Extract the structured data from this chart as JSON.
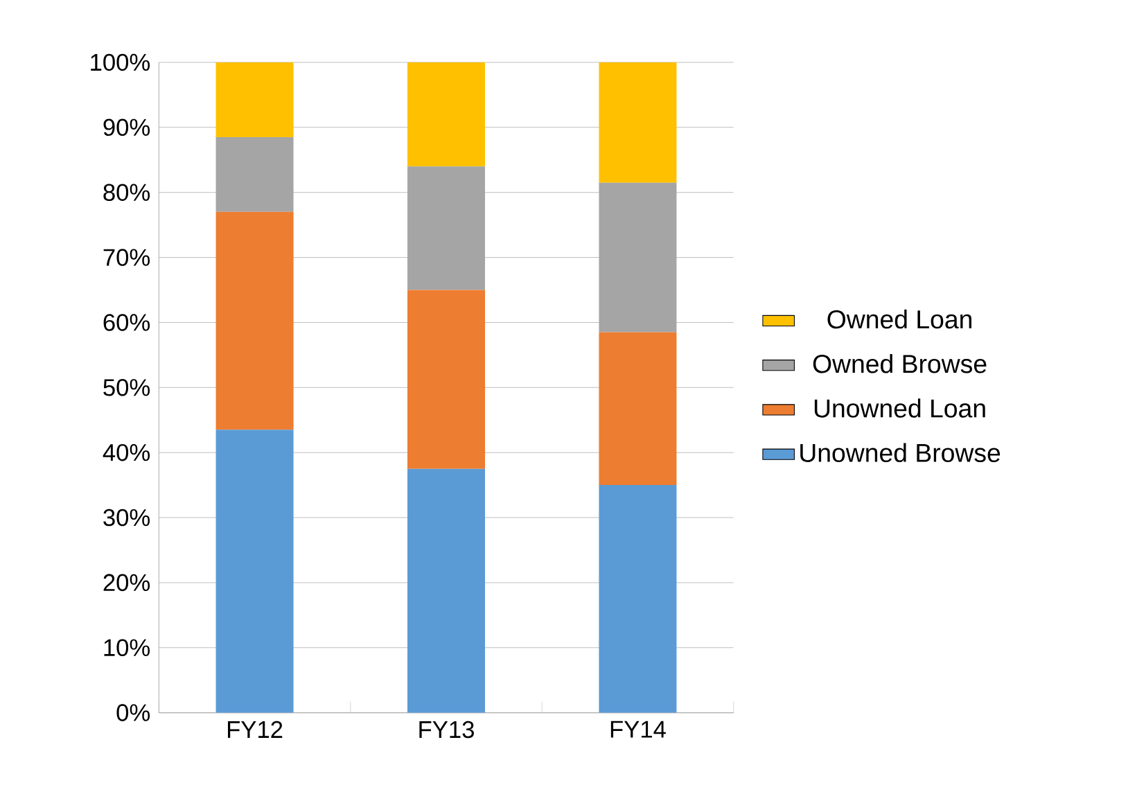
{
  "chart_data": {
    "type": "bar",
    "stacked": true,
    "categories": [
      "FY12",
      "FY13",
      "FY14"
    ],
    "series": [
      {
        "name": "Unowned Browse",
        "color": "#5b9bd5",
        "values": [
          43.5,
          37.5,
          35
        ]
      },
      {
        "name": "Unowned Loan",
        "color": "#ed7d31",
        "values": [
          33.5,
          27.5,
          23.5
        ]
      },
      {
        "name": "Owned Browse",
        "color": "#a5a5a5",
        "values": [
          11.5,
          19,
          23
        ]
      },
      {
        "name": "Owned Loan",
        "color": "#ffc000",
        "values": [
          11.5,
          16,
          18.5
        ]
      }
    ],
    "ylim": [
      0,
      100
    ],
    "yticks": [
      {
        "value": 0,
        "label": "0%"
      },
      {
        "value": 10,
        "label": "10%"
      },
      {
        "value": 20,
        "label": "20%"
      },
      {
        "value": 30,
        "label": "30%"
      },
      {
        "value": 40,
        "label": "40%"
      },
      {
        "value": 50,
        "label": "50%"
      },
      {
        "value": 60,
        "label": "60%"
      },
      {
        "value": 70,
        "label": "70%"
      },
      {
        "value": 80,
        "label": "80%"
      },
      {
        "value": 90,
        "label": "90%"
      },
      {
        "value": 100,
        "label": "100%"
      }
    ],
    "grid": "y",
    "legend": "right"
  }
}
